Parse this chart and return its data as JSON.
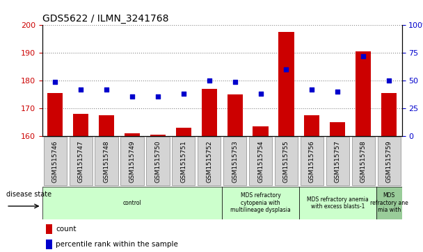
{
  "title": "GDS5622 / ILMN_3241768",
  "samples": [
    "GSM1515746",
    "GSM1515747",
    "GSM1515748",
    "GSM1515749",
    "GSM1515750",
    "GSM1515751",
    "GSM1515752",
    "GSM1515753",
    "GSM1515754",
    "GSM1515755",
    "GSM1515756",
    "GSM1515757",
    "GSM1515758",
    "GSM1515759"
  ],
  "counts": [
    175.5,
    168.0,
    167.5,
    161.0,
    160.5,
    163.0,
    177.0,
    175.0,
    163.5,
    197.5,
    167.5,
    165.0,
    190.5,
    175.5
  ],
  "percentiles": [
    49,
    42,
    42,
    36,
    36,
    38,
    50,
    49,
    38,
    60,
    42,
    40,
    72,
    50
  ],
  "ylim_left": [
    160,
    200
  ],
  "ylim_right": [
    0,
    100
  ],
  "yticks_left": [
    160,
    170,
    180,
    190,
    200
  ],
  "yticks_right": [
    0,
    25,
    50,
    75,
    100
  ],
  "bar_color": "#cc0000",
  "dot_color": "#0000cc",
  "bar_width": 0.6,
  "disease_groups": [
    {
      "label": "control",
      "start": 0,
      "end": 7,
      "color": "#ccffcc"
    },
    {
      "label": "MDS refractory\ncytopenia with\nmultilineage dysplasia",
      "start": 7,
      "end": 10,
      "color": "#ccffcc"
    },
    {
      "label": "MDS refractory anemia\nwith excess blasts-1",
      "start": 10,
      "end": 13,
      "color": "#ccffcc"
    },
    {
      "label": "MDS\nrefractory ane\nmia with",
      "start": 13,
      "end": 14,
      "color": "#99cc99"
    }
  ],
  "disease_state_label": "disease state",
  "legend_count_label": "count",
  "legend_percentile_label": "percentile rank within the sample",
  "bg_gray": "#d4d4d4",
  "bg_gray_edge": "#888888"
}
